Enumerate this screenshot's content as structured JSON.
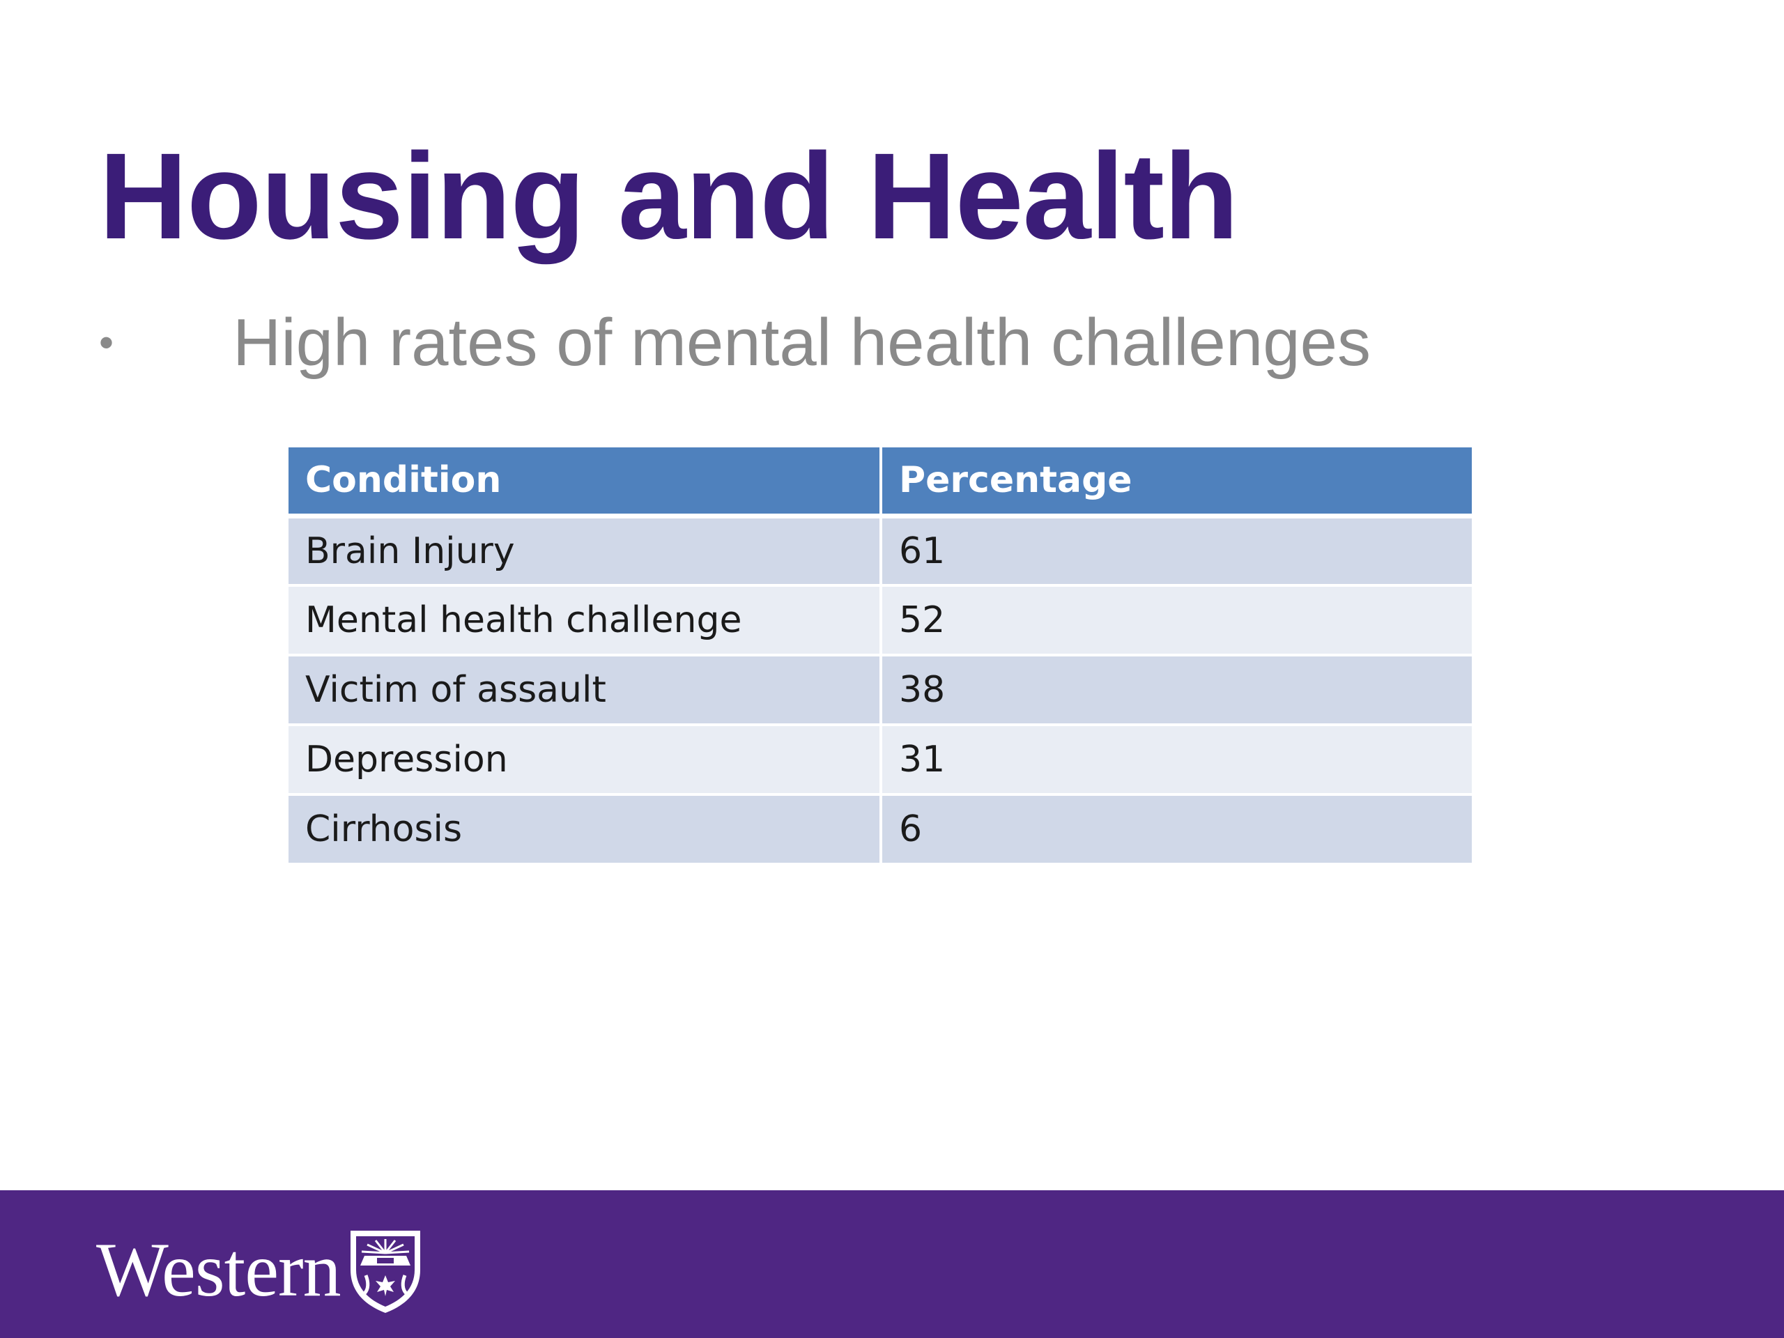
{
  "slide": {
    "title": "Housing and Health",
    "bullets": [
      {
        "text": "High rates of mental health challenges"
      }
    ]
  },
  "table": {
    "headers": [
      "Condition",
      "Percentage"
    ],
    "rows": [
      {
        "condition": "Brain Injury",
        "percentage": "61"
      },
      {
        "condition": "Mental health challenge",
        "percentage": "52"
      },
      {
        "condition": "Victim of assault",
        "percentage": "38"
      },
      {
        "condition": "Depression",
        "percentage": "31"
      },
      {
        "condition": "Cirrhosis",
        "percentage": "6"
      }
    ]
  },
  "footer": {
    "logo_text": "Western",
    "logo_icon": "university-crest-icon",
    "background_color": "#4f2683"
  },
  "colors": {
    "title": "#3b1d78",
    "bullet_text": "#8a8a8a",
    "table_header": "#4f81bd",
    "table_row_odd": "#d0d8e8",
    "table_row_even": "#e9edf4"
  }
}
